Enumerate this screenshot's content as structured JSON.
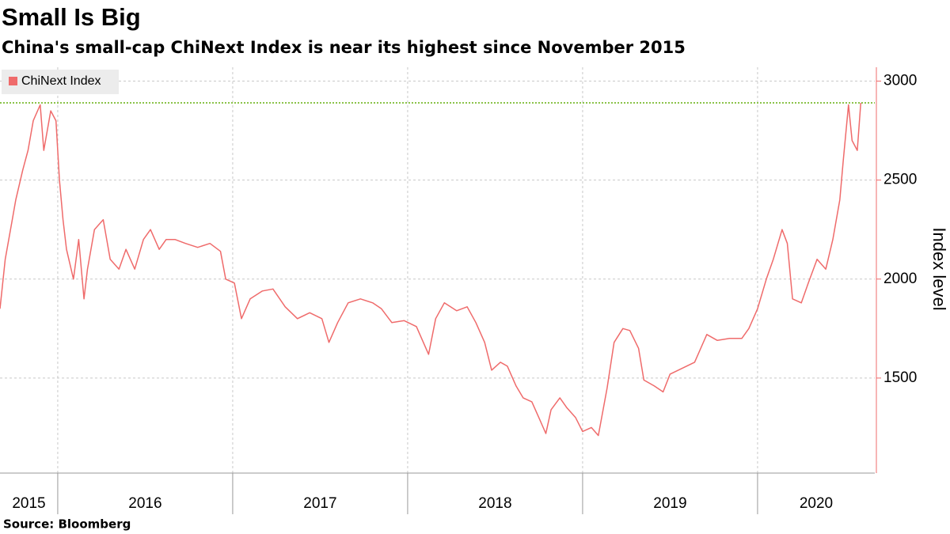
{
  "chart_data": {
    "type": "line",
    "title": "Small Is Big",
    "subtitle": "China's small-cap ChiNext Index is near its highest since November 2015",
    "source": "Source: Bloomberg",
    "y_label": "Index level",
    "xlim": [
      2015.67,
      2020.67
    ],
    "xticks": [
      2016,
      2017,
      2018,
      2019,
      2020
    ],
    "year_labels": [
      "2015",
      "2016",
      "2017",
      "2018",
      "2019",
      "2020"
    ],
    "ylim": [
      1020,
      3070
    ],
    "yticks": [
      1500,
      2000,
      2500,
      3000
    ],
    "grid": true,
    "reference_line": {
      "value": 2890,
      "color": "#8bc34a"
    },
    "legend": "top-left",
    "x": [
      2015.67,
      2015.7,
      2015.74,
      2015.76,
      2015.8,
      2015.83,
      2015.86,
      2015.9,
      2015.92,
      2015.94,
      2015.96,
      2015.99,
      2016.01,
      2016.03,
      2016.05,
      2016.09,
      2016.12,
      2016.15,
      2016.17,
      2016.21,
      2016.26,
      2016.3,
      2016.35,
      2016.39,
      2016.44,
      2016.49,
      2016.53,
      2016.58,
      2016.62,
      2016.67,
      2016.73,
      2016.8,
      2016.87,
      2016.93,
      2016.96,
      2017.01,
      2017.05,
      2017.1,
      2017.17,
      2017.23,
      2017.3,
      2017.37,
      2017.44,
      2017.51,
      2017.55,
      2017.6,
      2017.66,
      2017.73,
      2017.8,
      2017.85,
      2017.91,
      2017.98,
      2018.05,
      2018.12,
      2018.16,
      2018.21,
      2018.28,
      2018.34,
      2018.39,
      2018.44,
      2018.48,
      2018.53,
      2018.57,
      2018.62,
      2018.66,
      2018.71,
      2018.75,
      2018.79,
      2018.82,
      2018.87,
      2018.91,
      2018.96,
      2019.0,
      2019.05,
      2019.09,
      2019.14,
      2019.18,
      2019.23,
      2019.27,
      2019.32,
      2019.35,
      2019.41,
      2019.46,
      2019.5,
      2019.57,
      2019.64,
      2019.71,
      2019.77,
      2019.84,
      2019.91,
      2019.95,
      2020.0,
      2020.05,
      2020.09,
      2020.14,
      2020.17,
      2020.2,
      2020.25,
      2020.29,
      2020.34,
      2020.39,
      2020.43,
      2020.47,
      2020.49,
      2020.52,
      2020.54,
      2020.57,
      2020.59
    ],
    "series": [
      {
        "name": "ChiNext Index",
        "color": "#ef6b6b",
        "values": [
          1850,
          2100,
          2300,
          2400,
          2550,
          2650,
          2800,
          2880,
          2650,
          2750,
          2850,
          2800,
          2500,
          2300,
          2150,
          2000,
          2200,
          1900,
          2050,
          2250,
          2300,
          2100,
          2050,
          2150,
          2050,
          2200,
          2250,
          2150,
          2200,
          2200,
          2180,
          2160,
          2180,
          2140,
          2000,
          1980,
          1800,
          1900,
          1940,
          1950,
          1860,
          1800,
          1830,
          1800,
          1680,
          1780,
          1880,
          1900,
          1880,
          1850,
          1780,
          1790,
          1760,
          1620,
          1800,
          1880,
          1840,
          1860,
          1780,
          1680,
          1540,
          1580,
          1560,
          1460,
          1400,
          1380,
          1300,
          1220,
          1340,
          1400,
          1350,
          1300,
          1230,
          1250,
          1210,
          1450,
          1680,
          1750,
          1740,
          1650,
          1490,
          1460,
          1430,
          1520,
          1550,
          1580,
          1720,
          1690,
          1700,
          1700,
          1750,
          1850,
          2000,
          2100,
          2250,
          2180,
          1900,
          1880,
          1980,
          2100,
          2050,
          2200,
          2400,
          2600,
          2880,
          2700,
          2650,
          2890
        ]
      }
    ]
  }
}
